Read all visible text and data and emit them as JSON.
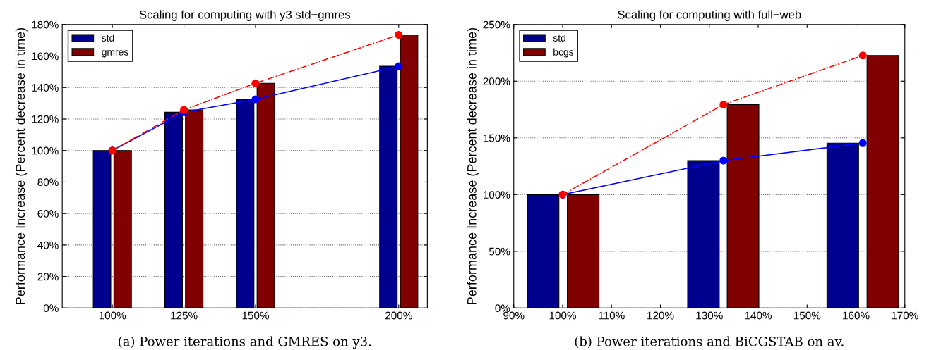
{
  "chart_data": [
    {
      "type": "bar",
      "title": "Scaling for computing with y3 std−gmres",
      "ylabel": "Performance Increase (Percent decrease in time)",
      "annotations": [
        "(a) Power iterations and GMRES on y3."
      ],
      "xlim": [
        82.5,
        210
      ],
      "xticks": [
        {
          "value": 100,
          "label": "100%"
        },
        {
          "value": 125,
          "label": "125%"
        },
        {
          "value": 150,
          "label": "150%"
        },
        {
          "value": 200,
          "label": "200%"
        }
      ],
      "ylim": [
        0,
        180
      ],
      "yticks": [
        {
          "value": 0,
          "label": "0%"
        },
        {
          "value": 20,
          "label": "20%"
        },
        {
          "value": 40,
          "label": "40%"
        },
        {
          "value": 60,
          "label": "60%"
        },
        {
          "value": 80,
          "label": "80%"
        },
        {
          "value": 100,
          "label": "100%"
        },
        {
          "value": 120,
          "label": "120%"
        },
        {
          "value": 140,
          "label": "140%"
        },
        {
          "value": 160,
          "label": "160%"
        },
        {
          "value": 180,
          "label": "180%"
        }
      ],
      "grid": "y",
      "legend": "top left",
      "series": [
        {
          "name": "std",
          "color": "#00008f",
          "x": [
            96.4,
            121.4,
            146.4,
            196.4
          ],
          "values": [
            100,
            124.3,
            132.5,
            153.5
          ]
        },
        {
          "name": "gmres",
          "color": "#800000",
          "x": [
            103.6,
            128.6,
            153.6,
            203.6
          ],
          "values": [
            100,
            125.8,
            142.7,
            173.4
          ]
        },
        {
          "type": "line",
          "color": "#0000ff",
          "marker": "circle",
          "line_style": "solid",
          "x": [
            100,
            125,
            150,
            200
          ],
          "values": [
            100,
            124.3,
            132.5,
            153.5
          ]
        },
        {
          "type": "line",
          "color": "#ff0000",
          "marker": "circle",
          "line_style": "dashdot",
          "x": [
            100,
            125,
            150,
            200
          ],
          "values": [
            100,
            125.8,
            142.7,
            173.4
          ]
        }
      ]
    },
    {
      "type": "bar",
      "title": "Scaling for computing with full−web",
      "ylabel": "Performance Increase (Percent decrease in time)",
      "annotations": [
        "(b) Power iterations and BiCGSTAB on av."
      ],
      "xlim": [
        90,
        170
      ],
      "xticks": [
        {
          "value": 90,
          "label": "90%"
        },
        {
          "value": 100,
          "label": "100%"
        },
        {
          "value": 110,
          "label": "110%"
        },
        {
          "value": 120,
          "label": "120%"
        },
        {
          "value": 130,
          "label": "130%"
        },
        {
          "value": 140,
          "label": "140%"
        },
        {
          "value": 150,
          "label": "150%"
        },
        {
          "value": 160,
          "label": "160%"
        },
        {
          "value": 170,
          "label": "170%"
        }
      ],
      "ylim": [
        0,
        250
      ],
      "yticks": [
        {
          "value": 0,
          "label": "0%"
        },
        {
          "value": 50,
          "label": "50%"
        },
        {
          "value": 100,
          "label": "100%"
        },
        {
          "value": 150,
          "label": "150%"
        },
        {
          "value": 200,
          "label": "200%"
        },
        {
          "value": 250,
          "label": "250%"
        }
      ],
      "grid": "y",
      "legend": "top left",
      "series": [
        {
          "name": "std",
          "color": "#00008f",
          "x": [
            96.0,
            128.8,
            157.3
          ],
          "values": [
            100,
            130.0,
            145.4
          ]
        },
        {
          "name": "bcgs",
          "color": "#800000",
          "x": [
            104.2,
            136.9,
            165.5
          ],
          "values": [
            100,
            179.4,
            222.7
          ]
        },
        {
          "type": "line",
          "color": "#0000ff",
          "marker": "circle",
          "line_style": "solid",
          "x": [
            100,
            132.9,
            161.4
          ],
          "values": [
            100,
            130.0,
            145.4
          ]
        },
        {
          "type": "line",
          "color": "#ff0000",
          "marker": "circle",
          "line_style": "dashdot",
          "x": [
            100,
            132.9,
            161.4
          ],
          "values": [
            100,
            179.4,
            222.7
          ]
        }
      ]
    }
  ]
}
